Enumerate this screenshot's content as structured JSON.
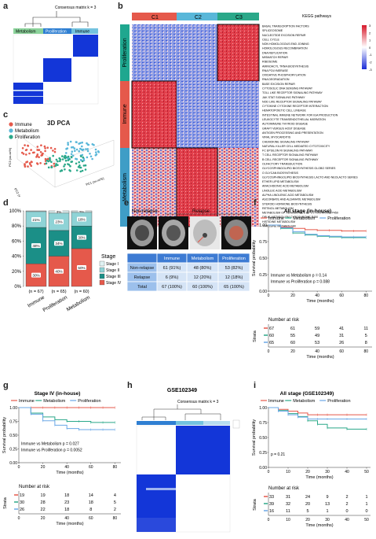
{
  "panels": {
    "a": {
      "label": "a",
      "title": "Consensus matrix k = 3",
      "clusters": [
        "Metabolism",
        "Proliferation",
        "Immune"
      ],
      "cluster_colors": [
        "#8cd39b",
        "#2f7fd2",
        "#74c3df"
      ]
    },
    "b": {
      "label": "b",
      "cluster_labels": [
        "C1",
        "C2",
        "C3"
      ],
      "cluster_colors": [
        "#e5594b",
        "#59b7d9",
        "#2aa889"
      ],
      "legend_title": "KEGG pathways",
      "color_scale_ticks": [
        "3",
        "2",
        "1",
        "0",
        "-1",
        "-2",
        "-3"
      ],
      "row_groups": [
        {
          "name": "Proliferation",
          "color": "#1fa78f"
        },
        {
          "name": "Immune",
          "color": "#e5594b"
        },
        {
          "name": "Metabolism",
          "color": "#3f9dc6"
        }
      ],
      "pathways": [
        "BASAL TRANSCRIPTION FACTORS",
        "SPLICEOSOME",
        "NUCLEOTIDE EXCISION REPAIR",
        "CELL CYCLE",
        "NON HOMOLOGOUS END JOINING",
        "HOMOLOGOUS RECOMBINATION",
        "DNA REPLICATION",
        "MISMATCH REPAIR",
        "RIBOSOME",
        "AMINOACYL TRNA BIOSYNTHESIS",
        "RNA POLYMERASE",
        "OXIDATIVE PHOSPHORYLATION",
        "RNA DEGRADATION",
        "BASE EXCISION REPAIR",
        "CYTOSOLIC DNA SENSING PATHWAY",
        "TOLL LIKE RECEPTOR SIGNALING PATHWAY",
        "JAK STAT SIGNALING PATHWAY",
        "NOD LIKE RECEPTOR SIGNALING PATHWAY",
        "CYTOKINE CYTOKINE RECEPTOR INTERACTION",
        "HEMATOPOIETIC CELL LINEAGE",
        "INTESTINAL IMMUNE NETWORK FOR IGA PRODUCTION",
        "LEUKOCYTE TRANSENDOTHELIAL MIGRATION",
        "AUTOIMMUNE THYROID DISEASE",
        "GRAFT VERSUS HOST DISEASE",
        "ANTIGEN PROCESSING AND PRESENTATION",
        "VIRAL MYOCARDITIS",
        "CHEMOKINE SIGNALING PATHWAY",
        "NATURAL KILLER CELL MEDIATED CYTOTOXICITY",
        "FC EPSILON RI SIGNALING PATHWAY",
        "T CELL RECEPTOR SIGNALING PATHWAY",
        "B CELL RECEPTOR SIGNALING PATHWAY",
        "OLFACTORY TRANSDUCTION",
        "GLYCOSPHINGOLIPID BIOSYNTHESIS GLOBO SERIES",
        "O GLYCAN BIOSYNTHESIS",
        "GLYCOSPHINGOLIPID BIOSYNTHESIS LACTO AND NEOLACTO SERIES",
        "ETHER LIPID METABOLISM",
        "ARACHIDONIC ACID METABOLISM",
        "LINOLEIC ACID METABOLISM",
        "ALPHA LINOLENIC ACID METABOLISM",
        "ASCORBATE AND ALDARATE METABOLISM",
        "STEROID HORMONE BIOSYNTHESIS",
        "RETINOL METABOLISM",
        "METABOLISM OF XENOBIOTICS BY CYTOCHROME P450",
        "DRUG METABOLISM CYTOCHROME P450",
        "HISTIDINE METABOLISM",
        "TYROSINE METABOLISM"
      ]
    },
    "c": {
      "label": "c",
      "title": "3D PCA",
      "legend": [
        {
          "name": "Immune",
          "color": "#e5594b"
        },
        {
          "name": "Metabolism",
          "color": "#59b7d9"
        },
        {
          "name": "Proliferation",
          "color": "#2aa889"
        }
      ],
      "axis_labels": [
        "PC1 (xx.xx%)",
        "PC2 (xx.xx%)",
        "PC3 (xx.xx%)"
      ]
    },
    "d": {
      "label": "d",
      "legend_title": "Stage",
      "stages": [
        "Stage I",
        "Stage II",
        "Stage III",
        "Stage IV"
      ],
      "stage_colors": [
        "#e0f2f3",
        "#8fd3d6",
        "#1b8f87",
        "#e5594b"
      ],
      "groups": [
        "Immune",
        "Proliferation",
        "Metabolism"
      ],
      "n_labels": [
        "(n = 67)",
        "(n = 65)",
        "(n = 60)"
      ],
      "y_ticks": [
        "100%",
        "80%",
        "60%",
        "40%",
        "20%",
        "0%"
      ]
    },
    "e": {
      "label": "e",
      "image_labels": [
        "Non-relapse",
        "Relapse"
      ],
      "table_header": [
        "",
        "Immune",
        "Metabolism",
        "Proliferation"
      ],
      "table_rows": [
        [
          "Non-relapse",
          "61 (91%)",
          "48 (80%)",
          "53 (82%)"
        ],
        [
          "Relapse",
          "6 (9%)",
          "12 (20%)",
          "12 (18%)"
        ],
        [
          "Total",
          "67 (100%)",
          "60 (100%)",
          "65 (100%)"
        ]
      ]
    },
    "f": {
      "label": "f",
      "title": "All stage (in-house)",
      "legend": [
        "Immune",
        "Metabolism",
        "Proliferation"
      ],
      "pvalue_1": "Immune vs Metabolism p = 0.14",
      "pvalue_2": "Immune vs Proliferation p = 0.088",
      "ylabel": "Survival probability",
      "xlabel": "Time (months)",
      "risk_title": "Number at risk",
      "risk_xlabel": "Time (months)",
      "strata_label": "Strata",
      "x_ticks": [
        "0",
        "20",
        "40",
        "60",
        "80"
      ],
      "y_ticks": [
        "1.00",
        "0.75",
        "0.50",
        "0.25",
        "0.00"
      ],
      "risk_rows": [
        [
          "67",
          "61",
          "59",
          "41",
          "11"
        ],
        [
          "60",
          "55",
          "49",
          "31",
          "5"
        ],
        [
          "65",
          "60",
          "53",
          "26",
          "8"
        ]
      ]
    },
    "g": {
      "label": "g",
      "title": "Stage IV (in-house)",
      "legend": [
        "Immune",
        "Metabolism",
        "Proliferation"
      ],
      "pvalue_1": "Immune vs Metabolism p = 0.027",
      "pvalue_2": "Immune vs Proliferation p = 0.0052",
      "ylabel": "Survival probability",
      "xlabel": "Time (months)",
      "risk_title": "Number at risk",
      "risk_xlabel": "Time (months)",
      "strata_label": "Strata",
      "x_ticks": [
        "0",
        "20",
        "40",
        "60",
        "80"
      ],
      "y_ticks": [
        "1.00",
        "0.75",
        "0.50",
        "0.25",
        "0.00"
      ],
      "risk_rows": [
        [
          "19",
          "19",
          "18",
          "14",
          "4"
        ],
        [
          "30",
          "28",
          "23",
          "18",
          "5"
        ],
        [
          "26",
          "22",
          "18",
          "8",
          "2"
        ]
      ]
    },
    "h": {
      "label": "h",
      "title": "GSE102349",
      "subtitle": "Consensus matrix k = 3"
    },
    "i": {
      "label": "i",
      "title": "All stage (GSE102349)",
      "legend": [
        "Immune",
        "Metabolism",
        "Proliferation"
      ],
      "pvalue": "p = 0.21",
      "ylabel": "Survival probability",
      "xlabel": "Time (months)",
      "risk_title": "Number at risk",
      "risk_xlabel": "Time (months)",
      "strata_label": "Strata",
      "x_ticks": [
        "0",
        "10",
        "20",
        "30",
        "40",
        "50"
      ],
      "y_ticks": [
        "1.00",
        "0.75",
        "0.50",
        "0.25",
        "0.00"
      ],
      "risk_rows": [
        [
          "33",
          "31",
          "24",
          "9",
          "2",
          "1"
        ],
        [
          "39",
          "32",
          "20",
          "13",
          "2",
          "1"
        ],
        [
          "16",
          "11",
          "5",
          "1",
          "0",
          "0"
        ]
      ]
    }
  },
  "chart_data": [
    {
      "type": "bar",
      "title": "",
      "categories": [
        "Immune",
        "Proliferation",
        "Metabolism"
      ],
      "series": [
        {
          "name": "Stage I",
          "values": [
            1,
            3,
            2
          ]
        },
        {
          "name": "Stage II",
          "values": [
            21,
            23,
            18
          ]
        },
        {
          "name": "Stage III",
          "values": [
            48,
            34,
            30
          ]
        },
        {
          "name": "Stage IV",
          "values": [
            30,
            40,
            50
          ]
        }
      ],
      "stacked": true,
      "ylim": [
        0,
        100
      ]
    },
    {
      "type": "line",
      "title": "All stage (in-house)",
      "xlabel": "Time (months)",
      "ylabel": "Survival probability",
      "xlim": [
        0,
        85
      ],
      "ylim": [
        0,
        1
      ],
      "series": [
        {
          "name": "Immune",
          "color": "#e5594b",
          "x": [
            0,
            10,
            20,
            30,
            40,
            50,
            60,
            70,
            80
          ],
          "y": [
            1.0,
            0.97,
            0.95,
            0.93,
            0.92,
            0.92,
            0.91,
            0.91,
            0.91
          ]
        },
        {
          "name": "Metabolism",
          "color": "#2aa889",
          "x": [
            0,
            10,
            20,
            30,
            40,
            50,
            60,
            70,
            80
          ],
          "y": [
            1.0,
            0.95,
            0.88,
            0.85,
            0.83,
            0.82,
            0.81,
            0.81,
            0.81
          ]
        },
        {
          "name": "Proliferation",
          "color": "#6aa7e6",
          "x": [
            0,
            10,
            20,
            30,
            40,
            50,
            60,
            70,
            80
          ],
          "y": [
            1.0,
            0.96,
            0.9,
            0.86,
            0.84,
            0.83,
            0.82,
            0.82,
            0.82
          ]
        }
      ]
    },
    {
      "type": "line",
      "title": "Stage IV (in-house)",
      "xlabel": "Time (months)",
      "ylabel": "Survival probability",
      "xlim": [
        0,
        85
      ],
      "ylim": [
        0,
        1
      ],
      "series": [
        {
          "name": "Immune",
          "color": "#e5594b",
          "x": [
            0,
            10,
            20,
            30,
            40,
            50,
            60,
            70,
            80
          ],
          "y": [
            1.0,
            1.0,
            1.0,
            1.0,
            1.0,
            1.0,
            1.0,
            1.0,
            1.0
          ]
        },
        {
          "name": "Metabolism",
          "color": "#2aa889",
          "x": [
            0,
            10,
            20,
            30,
            40,
            50,
            60,
            70,
            80
          ],
          "y": [
            1.0,
            0.9,
            0.83,
            0.78,
            0.75,
            0.75,
            0.73,
            0.73,
            0.73
          ]
        },
        {
          "name": "Proliferation",
          "color": "#6aa7e6",
          "x": [
            0,
            10,
            20,
            30,
            40,
            50,
            60,
            70,
            80
          ],
          "y": [
            1.0,
            0.88,
            0.76,
            0.68,
            0.62,
            0.6,
            0.6,
            0.6,
            0.6
          ]
        }
      ]
    },
    {
      "type": "line",
      "title": "All stage (GSE102349)",
      "xlabel": "Time (months)",
      "ylabel": "Survival probability",
      "xlim": [
        0,
        52
      ],
      "ylim": [
        0,
        1
      ],
      "series": [
        {
          "name": "Immune",
          "color": "#e5594b",
          "x": [
            0,
            5,
            10,
            15,
            20,
            25,
            30,
            40,
            50
          ],
          "y": [
            1.0,
            0.97,
            0.94,
            0.91,
            0.88,
            0.88,
            0.88,
            0.88,
            0.88
          ]
        },
        {
          "name": "Metabolism",
          "color": "#2aa889",
          "x": [
            0,
            5,
            10,
            15,
            20,
            25,
            30,
            40,
            50
          ],
          "y": [
            1.0,
            0.95,
            0.9,
            0.85,
            0.78,
            0.72,
            0.66,
            0.64,
            0.64
          ]
        },
        {
          "name": "Proliferation",
          "color": "#6aa7e6",
          "x": [
            0,
            5,
            10,
            15,
            20,
            25,
            30,
            40,
            50
          ],
          "y": [
            1.0,
            0.94,
            0.88,
            0.84,
            0.81,
            0.81,
            0.81,
            0.81,
            0.81
          ]
        }
      ]
    }
  ]
}
